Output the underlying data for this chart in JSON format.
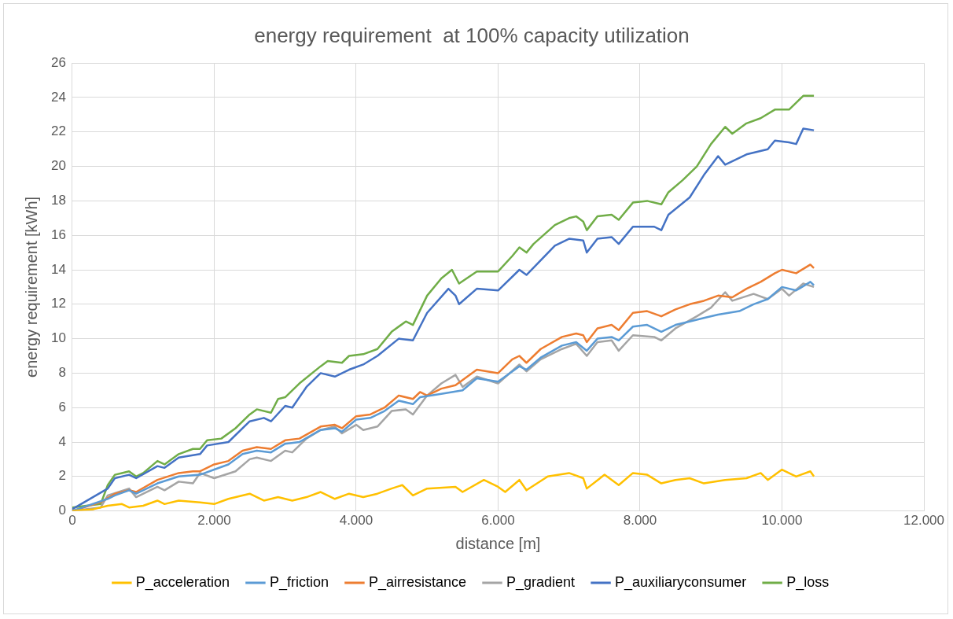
{
  "chart_data": {
    "type": "line",
    "title": "energy requirement  at 100% capacity utilization",
    "xlabel": "distance [m]",
    "ylabel": "energy requirement [kWh]",
    "xlim": [
      0,
      12000
    ],
    "xticks": [
      0,
      {
        "value": 2000,
        "label": "2.000"
      },
      {
        "value": 4000,
        "label": "4.000"
      },
      {
        "value": 6000,
        "label": "6.000"
      },
      {
        "value": 8000,
        "label": "8.000"
      },
      {
        "value": 10000,
        "label": "10.000"
      },
      {
        "value": 12000,
        "label": "12.000"
      }
    ],
    "ylim": [
      0,
      26
    ],
    "yticks": [
      0,
      2,
      4,
      6,
      8,
      10,
      12,
      14,
      16,
      18,
      20,
      22,
      24,
      26
    ],
    "grid": true,
    "legend": "bottom",
    "marker": "none",
    "line_style": "solid",
    "series": [
      {
        "name": "P_acceleration",
        "color": "#ffc000",
        "x": [
          0,
          300,
          500,
          700,
          800,
          1000,
          1200,
          1300,
          1500,
          1800,
          2000,
          2200,
          2500,
          2700,
          2900,
          3100,
          3300,
          3500,
          3700,
          3900,
          4100,
          4300,
          4500,
          4650,
          4800,
          5000,
          5400,
          5500,
          5800,
          6000,
          6100,
          6300,
          6400,
          6700,
          7000,
          7200,
          7250,
          7500,
          7700,
          7900,
          8100,
          8300,
          8500,
          8700,
          8900,
          9200,
          9500,
          9700,
          9800,
          10000,
          10200,
          10400,
          10450
        ],
        "values": [
          0,
          0.1,
          0.3,
          0.4,
          0.2,
          0.3,
          0.6,
          0.4,
          0.6,
          0.5,
          0.4,
          0.7,
          1.0,
          0.6,
          0.8,
          0.6,
          0.8,
          1.1,
          0.7,
          1.0,
          0.8,
          1.0,
          1.3,
          1.5,
          0.9,
          1.3,
          1.4,
          1.1,
          1.8,
          1.4,
          1.1,
          1.8,
          1.2,
          2.0,
          2.2,
          1.9,
          1.3,
          2.1,
          1.5,
          2.2,
          2.1,
          1.6,
          1.8,
          1.9,
          1.6,
          1.8,
          1.9,
          2.2,
          1.8,
          2.4,
          2.0,
          2.3,
          2.0
        ]
      },
      {
        "name": "P_friction",
        "color": "#5b9bd5",
        "x": [
          0,
          500,
          600,
          800,
          900,
          1200,
          1500,
          1800,
          2000,
          2200,
          2400,
          2600,
          2800,
          3000,
          3200,
          3500,
          3700,
          3800,
          4000,
          4200,
          4400,
          4600,
          4800,
          4900,
          5200,
          5500,
          5700,
          6000,
          6300,
          6400,
          6600,
          6900,
          7100,
          7250,
          7400,
          7600,
          7700,
          7900,
          8100,
          8300,
          8500,
          8700,
          8900,
          9100,
          9400,
          9600,
          9800,
          10000,
          10200,
          10400,
          10450
        ],
        "values": [
          0,
          0.7,
          0.9,
          1.2,
          1.0,
          1.6,
          2.0,
          2.1,
          2.4,
          2.7,
          3.3,
          3.5,
          3.4,
          3.9,
          4.0,
          4.7,
          4.8,
          4.6,
          5.3,
          5.4,
          5.8,
          6.4,
          6.2,
          6.6,
          6.8,
          7.0,
          7.7,
          7.5,
          8.4,
          8.2,
          8.9,
          9.6,
          9.8,
          9.3,
          10.0,
          10.1,
          9.9,
          10.7,
          10.8,
          10.4,
          10.8,
          11.0,
          11.2,
          11.4,
          11.6,
          12.0,
          12.3,
          13.0,
          12.8,
          13.3,
          13.1
        ]
      },
      {
        "name": "P_airresistance",
        "color": "#ed7d31",
        "x": [
          0,
          400,
          600,
          800,
          900,
          1200,
          1500,
          1700,
          1800,
          2000,
          2200,
          2400,
          2600,
          2800,
          3000,
          3200,
          3500,
          3700,
          3800,
          4000,
          4200,
          4400,
          4600,
          4800,
          4900,
          5000,
          5200,
          5400,
          5700,
          6000,
          6200,
          6300,
          6400,
          6600,
          6900,
          7100,
          7200,
          7250,
          7400,
          7600,
          7700,
          7900,
          8100,
          8300,
          8500,
          8700,
          8900,
          9100,
          9300,
          9500,
          9700,
          9900,
          10000,
          10200,
          10400,
          10450
        ],
        "values": [
          0,
          0.5,
          1.0,
          1.2,
          1.1,
          1.8,
          2.2,
          2.3,
          2.3,
          2.7,
          2.9,
          3.5,
          3.7,
          3.6,
          4.1,
          4.2,
          4.9,
          5.0,
          4.8,
          5.5,
          5.6,
          6.0,
          6.7,
          6.5,
          6.9,
          6.7,
          7.1,
          7.3,
          8.2,
          8.0,
          8.8,
          9.0,
          8.6,
          9.4,
          10.1,
          10.3,
          10.2,
          9.8,
          10.6,
          10.8,
          10.5,
          11.5,
          11.6,
          11.3,
          11.7,
          12.0,
          12.2,
          12.5,
          12.4,
          12.9,
          13.3,
          13.8,
          14.0,
          13.8,
          14.3,
          14.1
        ]
      },
      {
        "name": "P_gradient",
        "color": "#a5a5a5",
        "x": [
          0,
          400,
          500,
          800,
          900,
          1200,
          1300,
          1500,
          1700,
          1800,
          2000,
          2300,
          2500,
          2600,
          2800,
          3000,
          3100,
          3300,
          3500,
          3700,
          3800,
          4000,
          4100,
          4300,
          4500,
          4700,
          4800,
          5000,
          5200,
          5400,
          5500,
          5700,
          6000,
          6300,
          6400,
          6600,
          6900,
          7100,
          7250,
          7400,
          7600,
          7700,
          7900,
          8200,
          8300,
          8500,
          8800,
          9000,
          9200,
          9300,
          9600,
          9800,
          10000,
          10100,
          10300,
          10450
        ],
        "values": [
          0,
          0.2,
          0.9,
          1.3,
          0.8,
          1.4,
          1.2,
          1.7,
          1.6,
          2.2,
          1.9,
          2.3,
          3.0,
          3.1,
          2.9,
          3.5,
          3.4,
          4.2,
          4.7,
          4.9,
          4.5,
          5.0,
          4.7,
          4.9,
          5.8,
          5.9,
          5.6,
          6.7,
          7.4,
          7.9,
          7.2,
          7.8,
          7.4,
          8.5,
          8.1,
          8.8,
          9.4,
          9.7,
          9.0,
          9.8,
          9.9,
          9.3,
          10.2,
          10.1,
          9.9,
          10.6,
          11.3,
          11.8,
          12.7,
          12.2,
          12.6,
          12.3,
          12.9,
          12.5,
          13.2,
          13.0
        ]
      },
      {
        "name": "P_auxiliaryconsumer",
        "color": "#4472c4",
        "x": [
          0,
          500,
          600,
          800,
          900,
          1200,
          1300,
          1500,
          1800,
          1900,
          2200,
          2500,
          2700,
          2800,
          3000,
          3100,
          3300,
          3500,
          3700,
          3900,
          4100,
          4300,
          4600,
          4800,
          5000,
          5300,
          5400,
          5450,
          5700,
          6000,
          6300,
          6400,
          6800,
          7000,
          7200,
          7250,
          7400,
          7600,
          7700,
          7900,
          8200,
          8300,
          8400,
          8700,
          8900,
          9100,
          9200,
          9500,
          9800,
          9900,
          10100,
          10200,
          10300,
          10450
        ],
        "values": [
          0.1,
          1.3,
          1.9,
          2.1,
          1.9,
          2.6,
          2.5,
          3.1,
          3.3,
          3.8,
          4.0,
          5.2,
          5.4,
          5.2,
          6.1,
          6.0,
          7.2,
          8.0,
          7.8,
          8.2,
          8.5,
          9.0,
          10.0,
          9.9,
          11.5,
          12.9,
          12.5,
          12.0,
          12.9,
          12.8,
          14.0,
          13.7,
          15.4,
          15.8,
          15.7,
          15.0,
          15.8,
          15.9,
          15.5,
          16.5,
          16.5,
          16.3,
          17.2,
          18.2,
          19.5,
          20.6,
          20.1,
          20.7,
          21.0,
          21.5,
          21.4,
          21.3,
          22.2,
          22.1
        ]
      },
      {
        "name": "P_loss",
        "color": "#70ad47",
        "x": [
          0,
          400,
          500,
          600,
          700,
          800,
          900,
          1000,
          1200,
          1300,
          1500,
          1700,
          1800,
          1900,
          2100,
          2300,
          2500,
          2600,
          2800,
          2900,
          3000,
          3200,
          3500,
          3600,
          3800,
          3900,
          4100,
          4300,
          4500,
          4700,
          4800,
          5000,
          5200,
          5350,
          5450,
          5700,
          6000,
          6200,
          6300,
          6400,
          6500,
          6800,
          7000,
          7100,
          7200,
          7250,
          7400,
          7600,
          7700,
          7900,
          8100,
          8300,
          8400,
          8600,
          8800,
          9000,
          9200,
          9300,
          9500,
          9700,
          9900,
          10100,
          10200,
          10300,
          10450
        ],
        "values": [
          0.2,
          0.4,
          1.5,
          2.1,
          2.2,
          2.3,
          2.0,
          2.2,
          2.9,
          2.7,
          3.3,
          3.6,
          3.6,
          4.1,
          4.2,
          4.8,
          5.6,
          5.9,
          5.7,
          6.5,
          6.6,
          7.4,
          8.4,
          8.7,
          8.6,
          9.0,
          9.1,
          9.4,
          10.4,
          11.0,
          10.8,
          12.5,
          13.5,
          14.0,
          13.2,
          13.9,
          13.9,
          14.8,
          15.3,
          15.0,
          15.5,
          16.6,
          17.0,
          17.1,
          16.8,
          16.3,
          17.1,
          17.2,
          16.9,
          17.9,
          18.0,
          17.8,
          18.5,
          19.2,
          20.0,
          21.3,
          22.3,
          21.9,
          22.5,
          22.8,
          23.3,
          23.3,
          23.7,
          24.1,
          24.1
        ]
      }
    ]
  }
}
